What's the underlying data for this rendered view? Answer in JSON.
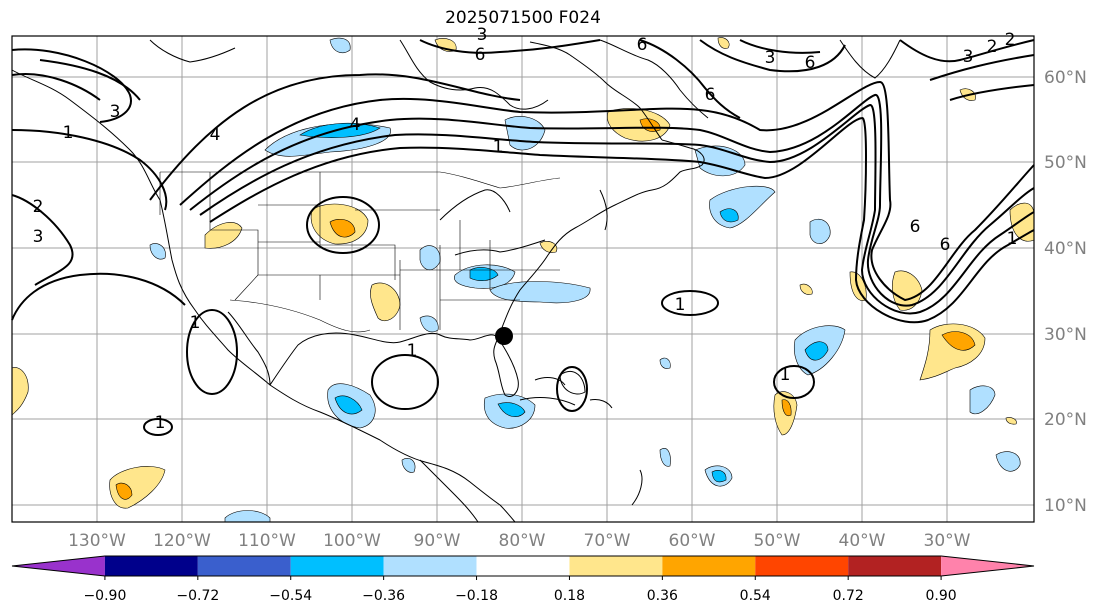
{
  "title": "2025071500 F024",
  "lon_labels": [
    "130°W",
    "120°W",
    "110°W",
    "100°W",
    "90°W",
    "80°W",
    "70°W",
    "60°W",
    "50°W",
    "40°W",
    "30°W"
  ],
  "lat_labels": [
    "60°N",
    "50°N",
    "40°N",
    "30°N",
    "20°N",
    "10°N"
  ],
  "colorbar": {
    "ticks": [
      "−0.90",
      "−0.72",
      "−0.54",
      "−0.36",
      "−0.18",
      "0.18",
      "0.36",
      "0.54",
      "0.72",
      "0.90"
    ],
    "colors": [
      "#9932cc",
      "#00008b",
      "#3a5fcd",
      "#00bfff",
      "#b0e0ff",
      "#ffffff",
      "#ffe68c",
      "#ffa500",
      "#ff4500",
      "#b22222",
      "#ff82ab"
    ]
  },
  "contour_labels": [
    "1",
    "1",
    "1",
    "1",
    "1",
    "1",
    "1",
    "1",
    "2",
    "2",
    "2",
    "3",
    "3",
    "3",
    "3",
    "3",
    "4",
    "4",
    "6",
    "6",
    "6",
    "6",
    "6",
    "6"
  ],
  "marker": {
    "name": "station-marker",
    "lon": -81.5,
    "lat": 30.0
  }
}
